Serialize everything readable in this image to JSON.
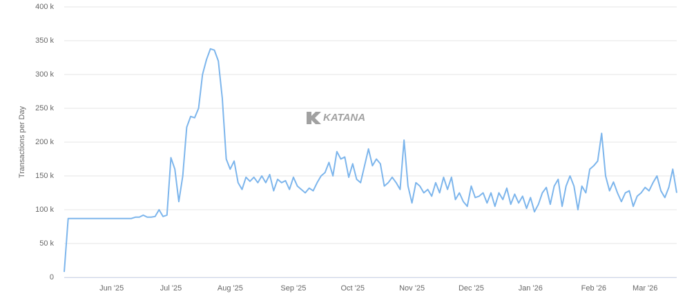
{
  "chart_data": {
    "type": "line",
    "y_label": "Transactions per Day",
    "watermark": "KATANA",
    "color": "#7cb5ec",
    "grid": true,
    "ylim": [
      0,
      400000
    ],
    "yticks": [
      0,
      {
        "value": 50000,
        "label": "50 k"
      },
      {
        "value": 100000,
        "label": "100 k"
      },
      {
        "value": 150000,
        "label": "150 k"
      },
      {
        "value": 200000,
        "label": "200 k"
      },
      {
        "value": 250000,
        "label": "250 k"
      },
      {
        "value": 300000,
        "label": "300 k"
      },
      {
        "value": 350000,
        "label": "350 k"
      },
      {
        "value": 400000,
        "label": "400 k"
      }
    ],
    "categories": [
      null,
      null,
      null,
      null,
      null,
      null,
      null,
      null,
      null,
      null,
      null,
      null,
      "Jun '25",
      null,
      null,
      null,
      null,
      null,
      null,
      null,
      null,
      null,
      null,
      null,
      null,
      null,
      null,
      "Jul '25",
      null,
      null,
      null,
      null,
      null,
      null,
      null,
      null,
      null,
      null,
      null,
      null,
      null,
      null,
      "Aug '25",
      null,
      null,
      null,
      null,
      null,
      null,
      null,
      null,
      null,
      null,
      null,
      null,
      null,
      null,
      null,
      "Sep '25",
      null,
      null,
      null,
      null,
      null,
      null,
      null,
      null,
      null,
      null,
      null,
      null,
      null,
      null,
      "Oct '25",
      null,
      null,
      null,
      null,
      null,
      null,
      null,
      null,
      null,
      null,
      null,
      null,
      null,
      null,
      "Nov '25",
      null,
      null,
      null,
      null,
      null,
      null,
      null,
      null,
      null,
      null,
      null,
      null,
      null,
      null,
      "Dec '25",
      null,
      null,
      null,
      null,
      null,
      null,
      null,
      null,
      null,
      null,
      null,
      null,
      null,
      null,
      "Jan '26",
      null,
      null,
      null,
      null,
      null,
      null,
      null,
      null,
      null,
      null,
      null,
      null,
      null,
      null,
      null,
      "Feb '26",
      null,
      null,
      null,
      null,
      null,
      null,
      null,
      null,
      null,
      null,
      null,
      null,
      "Mar '26",
      null,
      null,
      null,
      null,
      null,
      null,
      null,
      null
    ],
    "values": [
      8000,
      87000,
      87000,
      87000,
      87000,
      87000,
      87000,
      87000,
      87000,
      87000,
      87000,
      87000,
      87000,
      87000,
      87000,
      87000,
      87000,
      87000,
      89000,
      89000,
      92000,
      89000,
      89000,
      90000,
      100000,
      90000,
      92000,
      177000,
      160000,
      112000,
      150000,
      222000,
      238000,
      236000,
      250000,
      300000,
      322000,
      338000,
      336000,
      320000,
      265000,
      175000,
      160000,
      172000,
      140000,
      130000,
      148000,
      142000,
      148000,
      140000,
      150000,
      140000,
      152000,
      128000,
      145000,
      140000,
      143000,
      130000,
      148000,
      135000,
      130000,
      125000,
      132000,
      128000,
      140000,
      150000,
      155000,
      170000,
      150000,
      186000,
      175000,
      178000,
      148000,
      168000,
      145000,
      140000,
      165000,
      190000,
      165000,
      175000,
      168000,
      135000,
      140000,
      148000,
      140000,
      130000,
      203000,
      135000,
      110000,
      140000,
      135000,
      125000,
      130000,
      120000,
      140000,
      125000,
      148000,
      130000,
      148000,
      115000,
      125000,
      112000,
      105000,
      135000,
      118000,
      120000,
      125000,
      110000,
      125000,
      105000,
      125000,
      115000,
      132000,
      108000,
      123000,
      110000,
      120000,
      102000,
      118000,
      97000,
      108000,
      125000,
      133000,
      108000,
      135000,
      145000,
      105000,
      135000,
      150000,
      135000,
      100000,
      135000,
      125000,
      160000,
      165000,
      172000,
      213000,
      150000,
      128000,
      141000,
      125000,
      112000,
      125000,
      128000,
      105000,
      120000,
      125000,
      133000,
      128000,
      140000,
      150000,
      128000,
      118000,
      133000,
      160000,
      125000
    ]
  }
}
